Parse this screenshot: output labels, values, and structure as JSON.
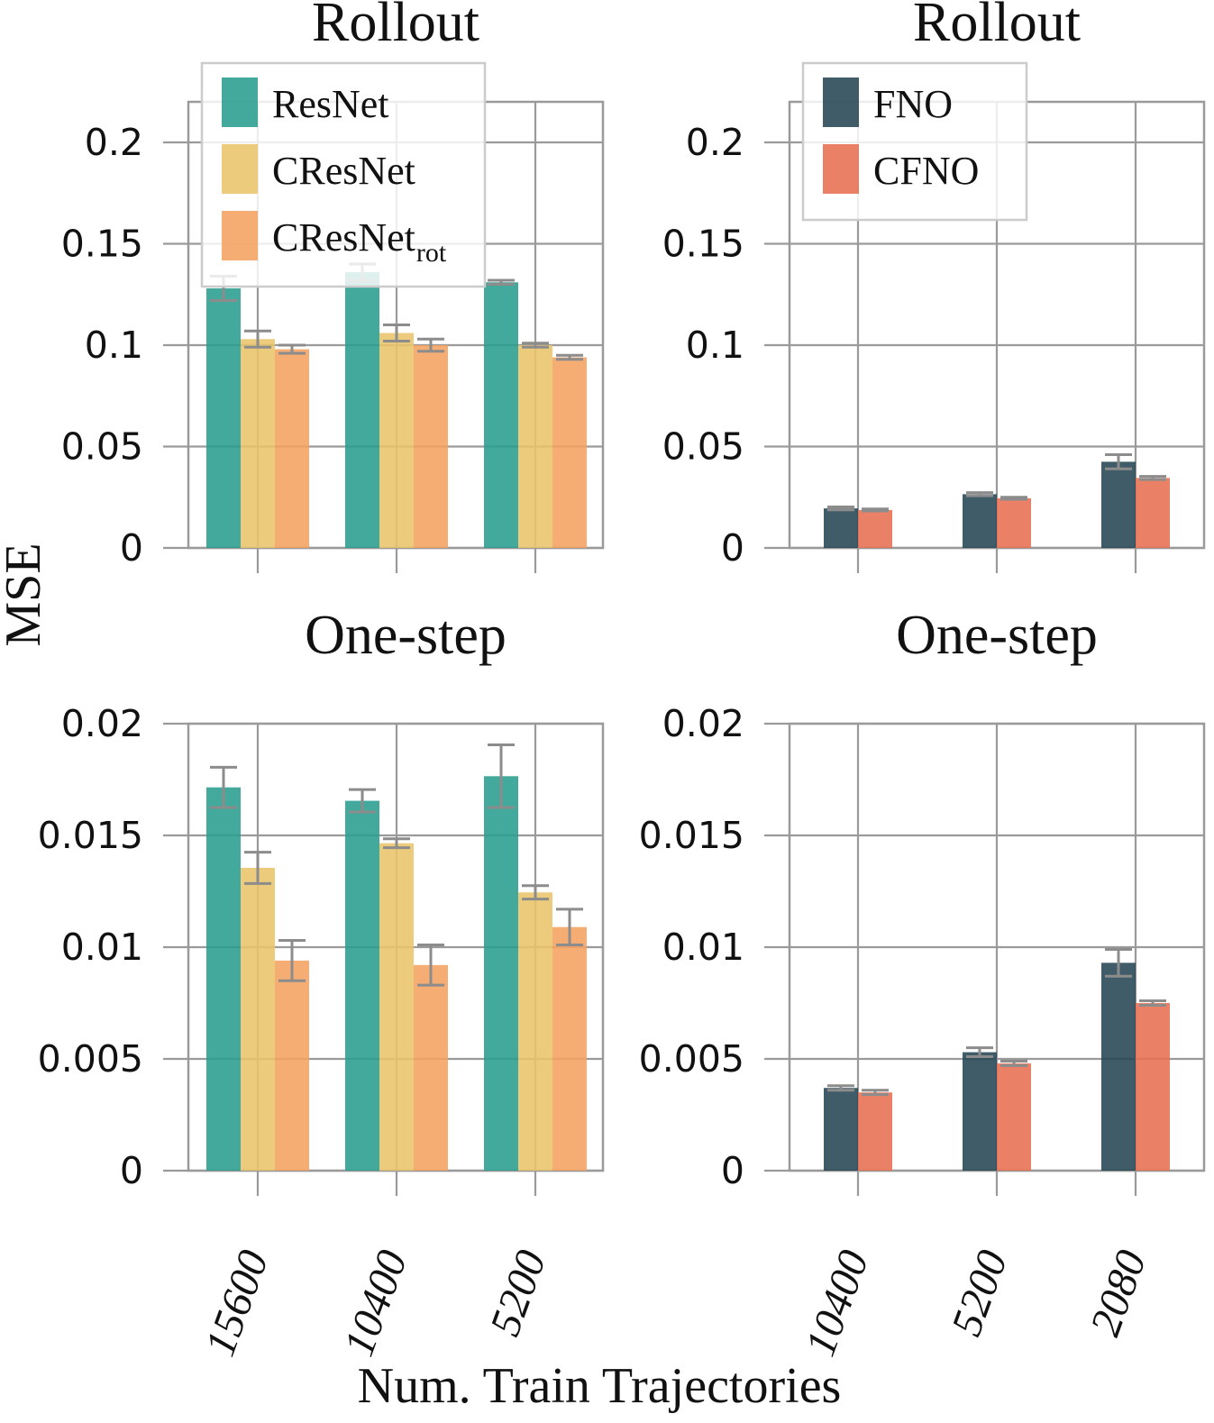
{
  "figure": {
    "ylabel": "MSE",
    "xlabel": "Num. Train Trajectories"
  },
  "colors": {
    "ResNet": "#2a9d8f",
    "CResNet": "#e9c46a",
    "CResNet_rot": "#f4a261",
    "FNO": "#264653",
    "CFNO": "#e76f51",
    "grid": "#9a9a9a",
    "errorbar": "#8c8c8c"
  },
  "chart_data": [
    {
      "id": "tl",
      "type": "bar",
      "title": "Rollout",
      "categories": [
        "15600",
        "10400",
        "5200"
      ],
      "ylim": [
        0,
        0.22
      ],
      "yticks": [
        "0",
        "0.05",
        "0.1",
        "0.15",
        "0.2"
      ],
      "ytick_values": [
        0,
        0.05,
        0.1,
        0.15,
        0.2
      ],
      "grid": true,
      "legend": {
        "placement": "top-left",
        "entries": [
          {
            "name": "ResNet",
            "sub": ""
          },
          {
            "name": "CResNet",
            "sub": ""
          },
          {
            "name": "CResNet",
            "sub": "rot"
          }
        ]
      },
      "series": [
        {
          "name": "ResNet",
          "values": [
            0.128,
            0.136,
            0.131
          ],
          "err": [
            0.006,
            0.004,
            0.001
          ]
        },
        {
          "name": "CResNet",
          "values": [
            0.103,
            0.106,
            0.1
          ],
          "err": [
            0.004,
            0.004,
            0.001
          ]
        },
        {
          "name": "CResNet_rot",
          "values": [
            0.098,
            0.1,
            0.094
          ],
          "err": [
            0.002,
            0.003,
            0.001
          ]
        }
      ]
    },
    {
      "id": "tr",
      "type": "bar",
      "title": "Rollout",
      "categories": [
        "10400",
        "5200",
        "2080"
      ],
      "ylim": [
        0,
        0.22
      ],
      "yticks": [
        "0",
        "0.05",
        "0.1",
        "0.15",
        "0.2"
      ],
      "ytick_values": [
        0,
        0.05,
        0.1,
        0.15,
        0.2
      ],
      "grid": true,
      "legend": {
        "placement": "top-left",
        "entries": [
          {
            "name": "FNO",
            "sub": ""
          },
          {
            "name": "CFNO",
            "sub": ""
          }
        ]
      },
      "series": [
        {
          "name": "FNO",
          "values": [
            0.0195,
            0.0265,
            0.0425
          ],
          "err": [
            0.0007,
            0.0008,
            0.0035
          ]
        },
        {
          "name": "CFNO",
          "values": [
            0.0187,
            0.0245,
            0.0345
          ],
          "err": [
            0.0005,
            0.0005,
            0.0008
          ]
        }
      ]
    },
    {
      "id": "bl",
      "type": "bar",
      "title": "One-step",
      "categories": [
        "15600",
        "10400",
        "5200"
      ],
      "ylim": [
        0,
        0.02
      ],
      "yticks": [
        "0",
        "0.005",
        "0.01",
        "0.015",
        "0.02"
      ],
      "ytick_values": [
        0,
        0.005,
        0.01,
        0.015,
        0.02
      ],
      "grid": true,
      "series": [
        {
          "name": "ResNet",
          "values": [
            0.01715,
            0.01655,
            0.01765
          ],
          "err": [
            0.0009,
            0.0005,
            0.0014
          ]
        },
        {
          "name": "CResNet",
          "values": [
            0.01355,
            0.01465,
            0.01245
          ],
          "err": [
            0.0007,
            0.0002,
            0.0003
          ]
        },
        {
          "name": "CResNet_rot",
          "values": [
            0.0094,
            0.0092,
            0.0109
          ],
          "err": [
            0.0009,
            0.0009,
            0.0008
          ]
        }
      ]
    },
    {
      "id": "br",
      "type": "bar",
      "title": "One-step",
      "categories": [
        "10400",
        "5200",
        "2080"
      ],
      "ylim": [
        0,
        0.02
      ],
      "yticks": [
        "0",
        "0.005",
        "0.01",
        "0.015",
        "0.02"
      ],
      "ytick_values": [
        0,
        0.005,
        0.01,
        0.015,
        0.02
      ],
      "grid": true,
      "series": [
        {
          "name": "FNO",
          "values": [
            0.0037,
            0.0053,
            0.0093
          ],
          "err": [
            0.0001,
            0.0002,
            0.0006
          ]
        },
        {
          "name": "CFNO",
          "values": [
            0.0035,
            0.0048,
            0.0075
          ],
          "err": [
            0.0001,
            0.0001,
            0.0001
          ]
        }
      ]
    }
  ]
}
